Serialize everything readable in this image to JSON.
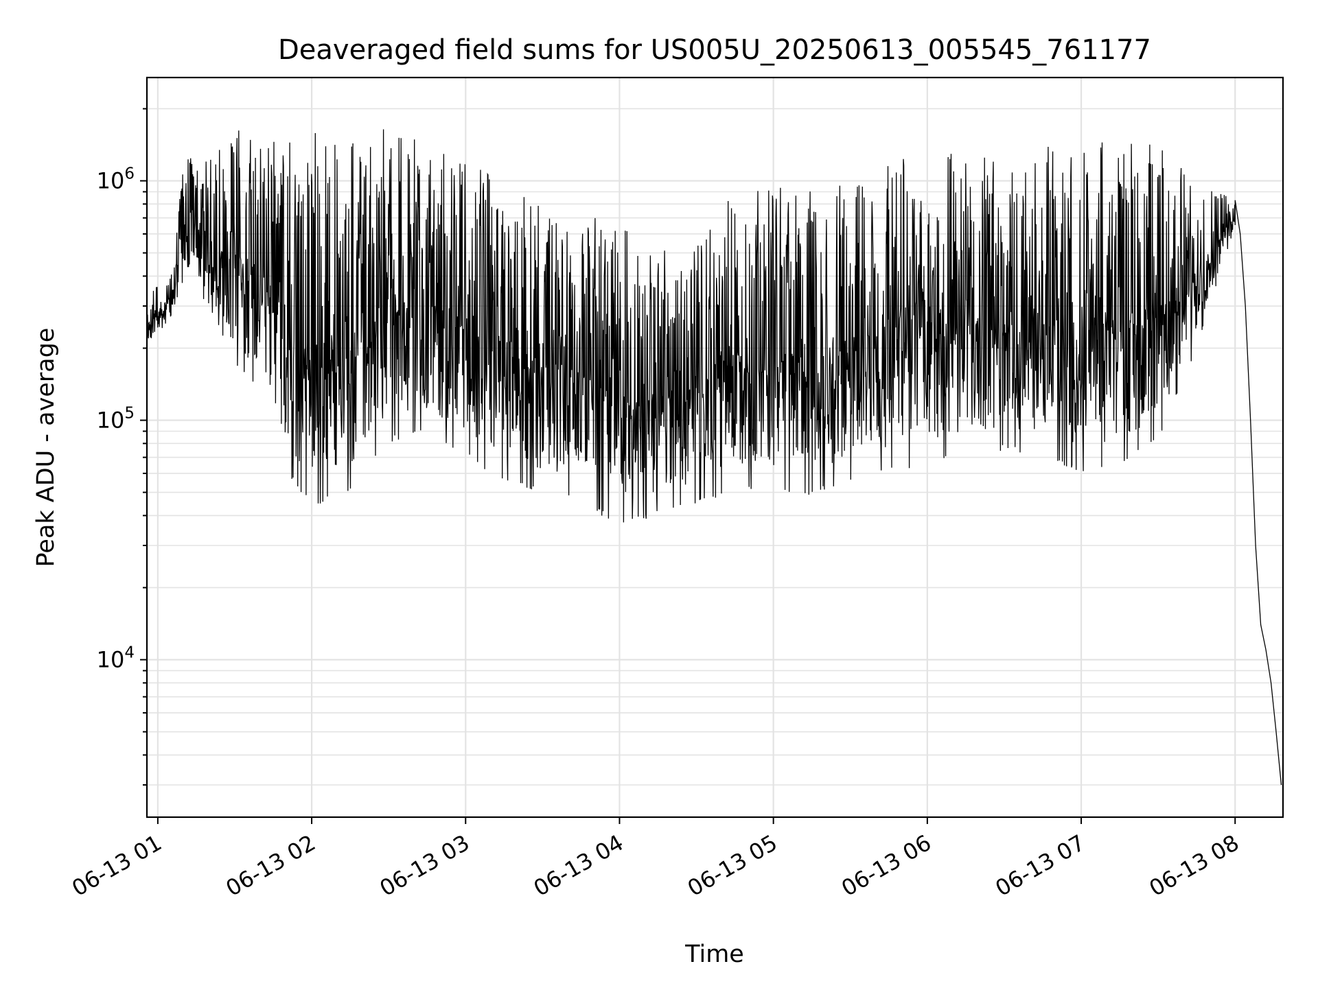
{
  "chart_data": {
    "type": "line",
    "title": "Deaveraged field sums for US005U_20250613_005545_761177",
    "xlabel": "Time",
    "ylabel": "Peak ADU - average",
    "y_scale": "log",
    "ylim": [
      2200,
      2700000
    ],
    "xlim": [
      "2025-06-13 00:55:45",
      "2025-06-13 08:18:40"
    ],
    "grid": true,
    "x_ticks": [
      {
        "label": "06-13 01",
        "value": "2025-06-13 01:00:00"
      },
      {
        "label": "06-13 02",
        "value": "2025-06-13 02:00:00"
      },
      {
        "label": "06-13 03",
        "value": "2025-06-13 03:00:00"
      },
      {
        "label": "06-13 04",
        "value": "2025-06-13 04:00:00"
      },
      {
        "label": "06-13 05",
        "value": "2025-06-13 05:00:00"
      },
      {
        "label": "06-13 06",
        "value": "2025-06-13 06:00:00"
      },
      {
        "label": "06-13 07",
        "value": "2025-06-13 07:00:00"
      },
      {
        "label": "06-13 08",
        "value": "2025-06-13 08:00:00"
      }
    ],
    "y_ticks": [
      {
        "base": "10",
        "exp": "4",
        "value": 10000
      },
      {
        "base": "10",
        "exp": "5",
        "value": 100000
      },
      {
        "base": "10",
        "exp": "6",
        "value": 1000000
      }
    ],
    "series": [
      {
        "color": "#000000",
        "envelope": [
          {
            "x": "2025-06-13 00:56:00",
            "low": 200000,
            "high": 330000
          },
          {
            "x": "2025-06-13 01:05:00",
            "low": 270000,
            "high": 420000
          },
          {
            "x": "2025-06-13 01:10:00",
            "low": 380000,
            "high": 1300000
          },
          {
            "x": "2025-06-13 01:20:00",
            "low": 300000,
            "high": 1200000
          },
          {
            "x": "2025-06-13 01:30:00",
            "low": 170000,
            "high": 1800000
          },
          {
            "x": "2025-06-13 01:40:00",
            "low": 130000,
            "high": 1900000
          },
          {
            "x": "2025-06-13 01:50:00",
            "low": 60000,
            "high": 1600000
          },
          {
            "x": "2025-06-13 02:00:00",
            "low": 42000,
            "high": 1600000
          },
          {
            "x": "2025-06-13 02:15:00",
            "low": 50000,
            "high": 1500000
          },
          {
            "x": "2025-06-13 02:30:00",
            "low": 80000,
            "high": 1700000
          },
          {
            "x": "2025-06-13 02:45:00",
            "low": 90000,
            "high": 1400000
          },
          {
            "x": "2025-06-13 03:00:00",
            "low": 70000,
            "high": 1300000
          },
          {
            "x": "2025-06-13 03:15:00",
            "low": 55000,
            "high": 1000000
          },
          {
            "x": "2025-06-13 03:30:00",
            "low": 50000,
            "high": 800000
          },
          {
            "x": "2025-06-13 03:45:00",
            "low": 45000,
            "high": 700000
          },
          {
            "x": "2025-06-13 04:00:00",
            "low": 36000,
            "high": 700000
          },
          {
            "x": "2025-06-13 04:15:00",
            "low": 40000,
            "high": 500000
          },
          {
            "x": "2025-06-13 04:30:00",
            "low": 45000,
            "high": 600000
          },
          {
            "x": "2025-06-13 04:45:00",
            "low": 50000,
            "high": 900000
          },
          {
            "x": "2025-06-13 05:00:00",
            "low": 50000,
            "high": 950000
          },
          {
            "x": "2025-06-13 05:15:00",
            "low": 48000,
            "high": 1000000
          },
          {
            "x": "2025-06-13 05:30:00",
            "low": 55000,
            "high": 1200000
          },
          {
            "x": "2025-06-13 05:45:00",
            "low": 60000,
            "high": 1200000
          },
          {
            "x": "2025-06-13 06:00:00",
            "low": 65000,
            "high": 1300000
          },
          {
            "x": "2025-06-13 06:15:00",
            "low": 70000,
            "high": 1300000
          },
          {
            "x": "2025-06-13 06:30:00",
            "low": 75000,
            "high": 1200000
          },
          {
            "x": "2025-06-13 06:45:00",
            "low": 70000,
            "high": 1400000
          },
          {
            "x": "2025-06-13 07:00:00",
            "low": 60000,
            "high": 1500000
          },
          {
            "x": "2025-06-13 07:15:00",
            "low": 65000,
            "high": 1500000
          },
          {
            "x": "2025-06-13 07:30:00",
            "low": 80000,
            "high": 1400000
          },
          {
            "x": "2025-06-13 07:45:00",
            "low": 200000,
            "high": 1000000
          },
          {
            "x": "2025-06-13 08:00:00",
            "low": 650000,
            "high": 850000
          }
        ],
        "tail": [
          {
            "x": "2025-06-13 08:00:00",
            "y": 830000
          },
          {
            "x": "2025-06-13 08:02:00",
            "y": 600000
          },
          {
            "x": "2025-06-13 08:04:00",
            "y": 300000
          },
          {
            "x": "2025-06-13 08:06:00",
            "y": 100000
          },
          {
            "x": "2025-06-13 08:08:00",
            "y": 30000
          },
          {
            "x": "2025-06-13 08:10:00",
            "y": 14000
          },
          {
            "x": "2025-06-13 08:12:00",
            "y": 11000
          },
          {
            "x": "2025-06-13 08:14:00",
            "y": 8000
          },
          {
            "x": "2025-06-13 08:16:00",
            "y": 5000
          },
          {
            "x": "2025-06-13 08:18:00",
            "y": 3000
          }
        ]
      }
    ]
  }
}
